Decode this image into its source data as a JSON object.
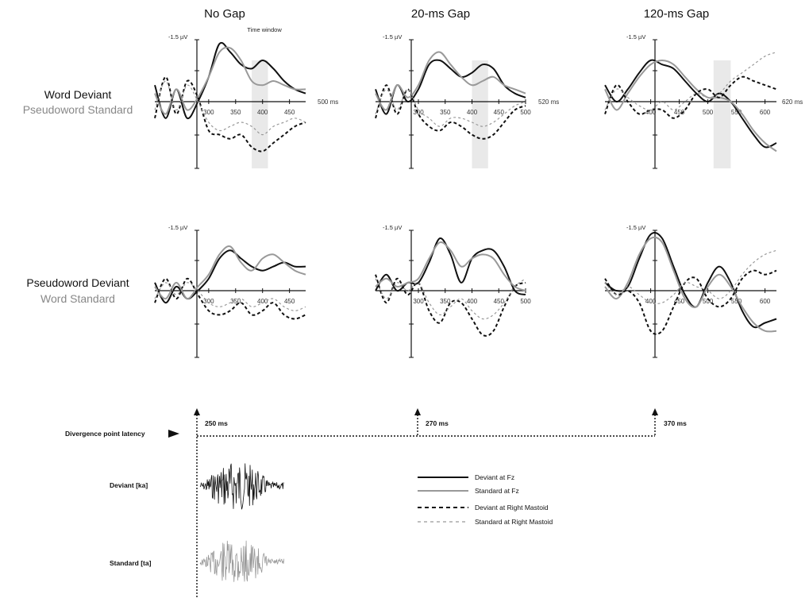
{
  "columns": [
    "No Gap",
    "20-ms Gap",
    "120-ms Gap"
  ],
  "rows": [
    {
      "deviant_label": "Word Deviant",
      "standard_label": "Pseudoword Standard"
    },
    {
      "deviant_label": "Pseudoword Deviant",
      "standard_label": "Word Standard"
    }
  ],
  "amplitude_label": "-1.5 µV",
  "time_window_label": "Time window",
  "end_labels": [
    "500 ms",
    "520 ms",
    "620 ms"
  ],
  "divergence": {
    "label": "Divergence point latency",
    "latencies": [
      "250 ms",
      "270 ms",
      "370 ms"
    ]
  },
  "stimuli": {
    "deviant_label": "Deviant [ka]",
    "standard_label": "Standard [ta]"
  },
  "legend": [
    {
      "label": "Deviant at Fz",
      "style": "solid",
      "color": "#111111"
    },
    {
      "label": "Standard at Fz",
      "style": "solid",
      "color": "#999999"
    },
    {
      "label": "Deviant at Right Mastoid",
      "style": "dashed",
      "color": "#111111"
    },
    {
      "label": "Standard at Right Mastoid",
      "style": "dashed",
      "color": "#999999"
    }
  ],
  "chart_data": [
    {
      "type": "line",
      "title": "No Gap",
      "row": "Word Deviant / Pseudoword Standard",
      "xlim": [
        200,
        480
      ],
      "ylim": [
        -1.5,
        1.5
      ],
      "x_ticks": [
        300,
        350,
        400,
        450
      ],
      "time_window": [
        380,
        410
      ],
      "x": [
        200,
        220,
        240,
        260,
        280,
        300,
        320,
        340,
        360,
        380,
        400,
        420,
        440,
        460,
        480
      ],
      "series": [
        {
          "name": "Deviant at Fz",
          "values": [
            0.4,
            -0.4,
            0.3,
            -0.4,
            0.0,
            0.6,
            1.4,
            1.2,
            0.9,
            0.8,
            1.0,
            0.8,
            0.5,
            0.3,
            0.2
          ]
        },
        {
          "name": "Standard at Fz",
          "values": [
            0.2,
            -0.3,
            0.3,
            -0.2,
            0.1,
            0.6,
            1.2,
            1.3,
            1.0,
            0.5,
            0.4,
            0.5,
            0.4,
            0.3,
            0.3
          ]
        },
        {
          "name": "Deviant at Right Mastoid",
          "values": [
            -0.4,
            0.6,
            -0.3,
            0.5,
            0.1,
            -0.7,
            -0.8,
            -0.9,
            -0.8,
            -1.1,
            -1.2,
            -1.0,
            -0.8,
            -0.6,
            -0.5
          ]
        },
        {
          "name": "Standard at Right Mastoid",
          "values": [
            -0.2,
            0.5,
            -0.2,
            0.4,
            0.0,
            -0.5,
            -0.7,
            -0.6,
            -0.5,
            -0.6,
            -0.8,
            -0.6,
            -0.5,
            -0.4,
            -0.5
          ]
        }
      ]
    },
    {
      "type": "line",
      "title": "20-ms Gap",
      "row": "Word Deviant / Pseudoword Standard",
      "xlim": [
        220,
        500
      ],
      "ylim": [
        -1.5,
        1.5
      ],
      "x_ticks": [
        300,
        350,
        400,
        450,
        500
      ],
      "time_window": [
        400,
        430
      ],
      "x": [
        220,
        240,
        260,
        280,
        300,
        320,
        340,
        360,
        380,
        400,
        420,
        440,
        460,
        480,
        500
      ],
      "series": [
        {
          "name": "Deviant at Fz",
          "values": [
            0.3,
            -0.3,
            0.4,
            0.0,
            0.3,
            0.9,
            1.0,
            0.8,
            0.6,
            0.7,
            0.9,
            0.8,
            0.4,
            0.2,
            0.1
          ]
        },
        {
          "name": "Standard at Fz",
          "values": [
            0.2,
            -0.2,
            0.4,
            0.1,
            0.4,
            1.0,
            1.2,
            0.9,
            0.6,
            0.4,
            0.5,
            0.6,
            0.4,
            0.3,
            0.2
          ]
        },
        {
          "name": "Deviant at Right Mastoid",
          "values": [
            -0.4,
            0.4,
            -0.3,
            0.3,
            -0.3,
            -0.6,
            -0.7,
            -0.5,
            -0.6,
            -0.8,
            -0.9,
            -0.8,
            -0.5,
            -0.2,
            -0.1
          ]
        },
        {
          "name": "Standard at Right Mastoid",
          "values": [
            -0.3,
            0.3,
            -0.2,
            0.3,
            -0.2,
            -0.4,
            -0.6,
            -0.4,
            -0.4,
            -0.5,
            -0.6,
            -0.5,
            -0.3,
            -0.1,
            0.0
          ]
        }
      ]
    },
    {
      "type": "line",
      "title": "120-ms Gap",
      "row": "Word Deviant / Pseudoword Standard",
      "xlim": [
        320,
        620
      ],
      "ylim": [
        -1.5,
        1.5
      ],
      "x_ticks": [
        400,
        450,
        500,
        550,
        600
      ],
      "time_window": [
        510,
        540
      ],
      "x": [
        320,
        340,
        360,
        380,
        400,
        420,
        440,
        460,
        480,
        500,
        520,
        540,
        560,
        580,
        600,
        620
      ],
      "series": [
        {
          "name": "Deviant at Fz",
          "values": [
            0.4,
            0.0,
            0.3,
            0.7,
            1.0,
            0.9,
            0.8,
            0.5,
            0.2,
            0.0,
            0.2,
            0.0,
            -0.4,
            -0.8,
            -1.1,
            -1.0
          ]
        },
        {
          "name": "Standard at Fz",
          "values": [
            0.3,
            -0.2,
            0.2,
            0.6,
            0.9,
            1.0,
            0.9,
            0.6,
            0.3,
            0.1,
            0.1,
            0.0,
            -0.3,
            -0.7,
            -1.0,
            -1.2
          ]
        },
        {
          "name": "Deviant at Right Mastoid",
          "values": [
            -0.3,
            0.4,
            0.0,
            -0.3,
            -0.2,
            -0.2,
            -0.4,
            -0.2,
            0.2,
            0.3,
            0.1,
            0.4,
            0.6,
            0.5,
            0.4,
            0.3
          ]
        },
        {
          "name": "Standard at Right Mastoid",
          "values": [
            -0.2,
            0.3,
            0.1,
            -0.1,
            -0.2,
            0.0,
            -0.2,
            0.0,
            0.2,
            0.1,
            0.2,
            0.5,
            0.7,
            0.9,
            1.1,
            1.2
          ]
        }
      ]
    },
    {
      "type": "line",
      "title": "No Gap",
      "row": "Pseudoword Deviant / Word Standard",
      "xlim": [
        200,
        480
      ],
      "ylim": [
        -1.5,
        1.5
      ],
      "x_ticks": [
        300,
        350,
        400,
        450
      ],
      "x": [
        200,
        220,
        240,
        260,
        280,
        300,
        320,
        340,
        360,
        380,
        400,
        420,
        440,
        460,
        480
      ],
      "series": [
        {
          "name": "Deviant at Fz",
          "values": [
            0.2,
            -0.3,
            0.1,
            -0.2,
            0.0,
            0.3,
            0.8,
            1.0,
            0.8,
            0.6,
            0.5,
            0.6,
            0.7,
            0.6,
            0.6
          ]
        },
        {
          "name": "Standard at Fz",
          "values": [
            0.1,
            -0.2,
            0.2,
            -0.2,
            0.1,
            0.4,
            0.9,
            1.1,
            0.7,
            0.5,
            0.8,
            0.9,
            0.7,
            0.5,
            0.4
          ]
        },
        {
          "name": "Deviant at Right Mastoid",
          "values": [
            -0.3,
            0.3,
            -0.2,
            0.3,
            -0.1,
            -0.5,
            -0.6,
            -0.5,
            -0.3,
            -0.6,
            -0.5,
            -0.3,
            -0.6,
            -0.7,
            -0.6
          ]
        },
        {
          "name": "Standard at Right Mastoid",
          "values": [
            -0.2,
            0.2,
            -0.1,
            0.2,
            0.0,
            -0.3,
            -0.4,
            -0.3,
            -0.2,
            -0.4,
            -0.3,
            -0.2,
            -0.4,
            -0.5,
            -0.4
          ]
        }
      ]
    },
    {
      "type": "line",
      "title": "20-ms Gap",
      "row": "Pseudoword Deviant / Word Standard",
      "xlim": [
        220,
        500
      ],
      "ylim": [
        -1.5,
        1.5
      ],
      "x_ticks": [
        300,
        350,
        400,
        450,
        500
      ],
      "x": [
        220,
        240,
        260,
        280,
        300,
        320,
        340,
        360,
        380,
        400,
        420,
        440,
        460,
        480,
        500
      ],
      "series": [
        {
          "name": "Deviant at Fz",
          "values": [
            0.0,
            0.4,
            0.0,
            0.2,
            0.2,
            0.7,
            1.3,
            0.9,
            0.2,
            0.8,
            1.0,
            1.0,
            0.6,
            0.0,
            -0.1
          ]
        },
        {
          "name": "Standard at Fz",
          "values": [
            0.1,
            0.3,
            0.1,
            0.2,
            0.3,
            0.8,
            1.2,
            1.0,
            0.6,
            0.8,
            0.9,
            0.8,
            0.4,
            0.1,
            0.0
          ]
        },
        {
          "name": "Deviant at Right Mastoid",
          "values": [
            0.4,
            -0.3,
            0.3,
            -0.1,
            0.2,
            -0.5,
            -0.8,
            -0.3,
            -0.3,
            -0.7,
            -1.1,
            -1.0,
            -0.4,
            0.1,
            0.2
          ]
        },
        {
          "name": "Standard at Right Mastoid",
          "values": [
            0.3,
            -0.2,
            0.2,
            0.0,
            0.2,
            -0.3,
            -0.6,
            -0.4,
            -0.2,
            -0.5,
            -0.7,
            -0.6,
            -0.3,
            0.1,
            0.3
          ]
        }
      ]
    },
    {
      "type": "line",
      "title": "120-ms Gap",
      "row": "Pseudoword Deviant / Word Standard",
      "xlim": [
        320,
        620
      ],
      "ylim": [
        -1.5,
        1.5
      ],
      "x_ticks": [
        400,
        450,
        500,
        550,
        600
      ],
      "x": [
        320,
        340,
        360,
        380,
        400,
        420,
        440,
        460,
        480,
        500,
        520,
        540,
        560,
        580,
        600,
        620
      ],
      "series": [
        {
          "name": "Deviant at Fz",
          "values": [
            0.2,
            0.0,
            0.1,
            0.8,
            1.4,
            1.3,
            0.6,
            -0.1,
            -0.4,
            0.2,
            0.6,
            0.2,
            -0.5,
            -0.9,
            -0.8,
            -0.7
          ]
        },
        {
          "name": "Standard at Fz",
          "values": [
            0.1,
            -0.2,
            0.2,
            0.9,
            1.3,
            1.2,
            0.5,
            -0.2,
            -0.4,
            0.1,
            0.4,
            0.1,
            -0.4,
            -0.8,
            -1.0,
            -1.0
          ]
        },
        {
          "name": "Deviant at Right Mastoid",
          "values": [
            0.3,
            -0.1,
            0.0,
            -0.3,
            -1.0,
            -1.0,
            -0.4,
            0.2,
            0.3,
            -0.2,
            -0.4,
            -0.2,
            0.3,
            0.5,
            0.4,
            0.5
          ]
        },
        {
          "name": "Standard at Right Mastoid",
          "values": [
            0.2,
            -0.1,
            0.1,
            -0.1,
            -0.3,
            -0.3,
            -0.1,
            0.2,
            0.1,
            0.0,
            -0.2,
            0.0,
            0.4,
            0.7,
            0.9,
            1.0
          ]
        }
      ]
    }
  ]
}
